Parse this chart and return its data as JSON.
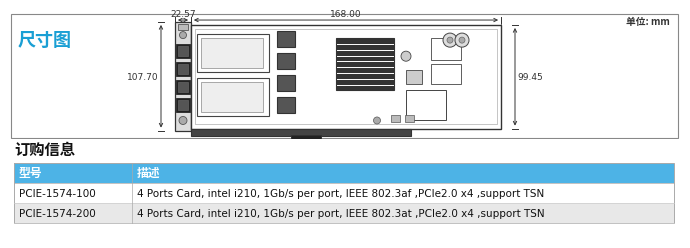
{
  "title_text": "尺寸图",
  "unit_text": "单位: mm",
  "order_title": "订购信息",
  "table_header": [
    "型号",
    "描述"
  ],
  "table_rows": [
    [
      "PCIE-1574-100",
      "4 Ports Card, intel i210, 1Gb/s per port, IEEE 802.3af ,PCIe2.0 x4 ,support TSN"
    ],
    [
      "PCIE-1574-200",
      "4 Ports Card, intel i210, 1Gb/s per port, IEEE 802.3at ,PCIe2.0 x4 ,support TSN"
    ]
  ],
  "header_bg": "#4db3e6",
  "row1_bg": "#ffffff",
  "row2_bg": "#e8e8e8",
  "border_color": "#aaaaaa",
  "title_color": "#1a9fd4",
  "dim_color": "#333333",
  "dim_168": "168.00",
  "dim_22": "22.57",
  "dim_107": "107.70",
  "dim_99": "99.45",
  "bg_color": "#ffffff"
}
